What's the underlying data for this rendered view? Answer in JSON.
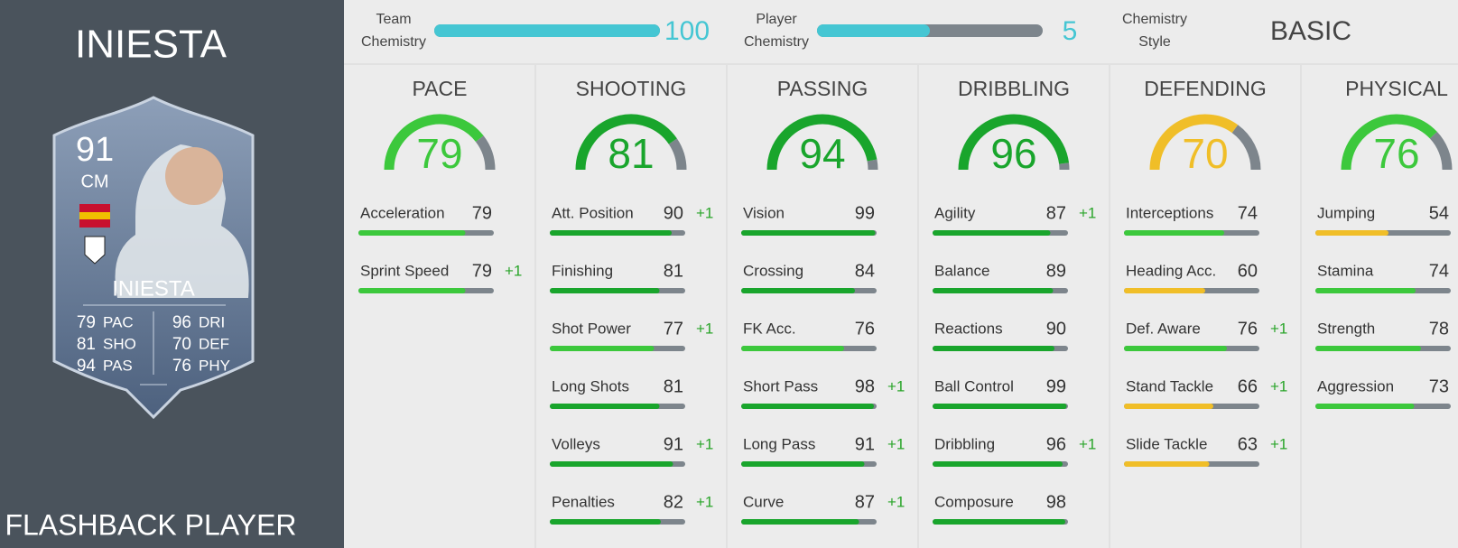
{
  "player": {
    "name": "INIESTA",
    "footer": "FLASHBACK PLAYER"
  },
  "card": {
    "rating": 91,
    "position": "CM",
    "name": "INIESTA",
    "stats": [
      {
        "value": 79,
        "label": "PAC"
      },
      {
        "value": 81,
        "label": "SHO"
      },
      {
        "value": 94,
        "label": "PAS"
      },
      {
        "value": 96,
        "label": "DRI"
      },
      {
        "value": 70,
        "label": "DEF"
      },
      {
        "value": 76,
        "label": "PHY"
      }
    ]
  },
  "team_chemistry": {
    "label_lines": [
      "Team",
      "Chemistry"
    ],
    "value": 100,
    "max": 100,
    "color": "#45c6d3"
  },
  "player_chemistry": {
    "label_lines": [
      "Player",
      "Chemistry"
    ],
    "value": 5,
    "max": 10,
    "color": "#45c6d3"
  },
  "chemistry_style": {
    "label_lines": [
      "Chemistry",
      "Style"
    ],
    "value": "BASIC"
  },
  "scale_max": 100,
  "categories": [
    {
      "name": "PACE",
      "value": 79,
      "color": "#3cc83c",
      "stats": [
        {
          "name": "Acceleration",
          "value": 79,
          "color": "#3cc83c"
        },
        {
          "name": "Sprint Speed",
          "value": 79,
          "color": "#3cc83c",
          "bonus": "+1"
        }
      ]
    },
    {
      "name": "SHOOTING",
      "value": 81,
      "color": "#19a52c",
      "stats": [
        {
          "name": "Att. Position",
          "value": 90,
          "color": "#19a52c",
          "bonus": "+1"
        },
        {
          "name": "Finishing",
          "value": 81,
          "color": "#19a52c"
        },
        {
          "name": "Shot Power",
          "value": 77,
          "color": "#3cc83c",
          "bonus": "+1"
        },
        {
          "name": "Long Shots",
          "value": 81,
          "color": "#19a52c"
        },
        {
          "name": "Volleys",
          "value": 91,
          "color": "#19a52c",
          "bonus": "+1"
        },
        {
          "name": "Penalties",
          "value": 82,
          "color": "#19a52c",
          "bonus": "+1"
        }
      ]
    },
    {
      "name": "PASSING",
      "value": 94,
      "color": "#19a52c",
      "stats": [
        {
          "name": "Vision",
          "value": 99,
          "color": "#19a52c"
        },
        {
          "name": "Crossing",
          "value": 84,
          "color": "#19a52c"
        },
        {
          "name": "FK Acc.",
          "value": 76,
          "color": "#3cc83c"
        },
        {
          "name": "Short Pass",
          "value": 98,
          "color": "#19a52c",
          "bonus": "+1"
        },
        {
          "name": "Long Pass",
          "value": 91,
          "color": "#19a52c",
          "bonus": "+1"
        },
        {
          "name": "Curve",
          "value": 87,
          "color": "#19a52c",
          "bonus": "+1"
        }
      ]
    },
    {
      "name": "DRIBBLING",
      "value": 96,
      "color": "#19a52c",
      "stats": [
        {
          "name": "Agility",
          "value": 87,
          "color": "#19a52c",
          "bonus": "+1"
        },
        {
          "name": "Balance",
          "value": 89,
          "color": "#19a52c"
        },
        {
          "name": "Reactions",
          "value": 90,
          "color": "#19a52c"
        },
        {
          "name": "Ball Control",
          "value": 99,
          "color": "#19a52c"
        },
        {
          "name": "Dribbling",
          "value": 96,
          "color": "#19a52c",
          "bonus": "+1"
        },
        {
          "name": "Composure",
          "value": 98,
          "color": "#19a52c"
        }
      ]
    },
    {
      "name": "DEFENDING",
      "value": 70,
      "color": "#f0be28",
      "stats": [
        {
          "name": "Interceptions",
          "value": 74,
          "color": "#3cc83c"
        },
        {
          "name": "Heading Acc.",
          "value": 60,
          "color": "#f0be28"
        },
        {
          "name": "Def. Aware",
          "value": 76,
          "color": "#3cc83c",
          "bonus": "+1"
        },
        {
          "name": "Stand Tackle",
          "value": 66,
          "color": "#f0be28",
          "bonus": "+1"
        },
        {
          "name": "Slide Tackle",
          "value": 63,
          "color": "#f0be28",
          "bonus": "+1"
        }
      ]
    },
    {
      "name": "PHYSICAL",
      "value": 76,
      "color": "#3cc83c",
      "stats": [
        {
          "name": "Jumping",
          "value": 54,
          "color": "#f0be28"
        },
        {
          "name": "Stamina",
          "value": 74,
          "color": "#3cc83c"
        },
        {
          "name": "Strength",
          "value": 78,
          "color": "#3cc83c"
        },
        {
          "name": "Aggression",
          "value": 73,
          "color": "#3cc83c"
        }
      ]
    }
  ]
}
